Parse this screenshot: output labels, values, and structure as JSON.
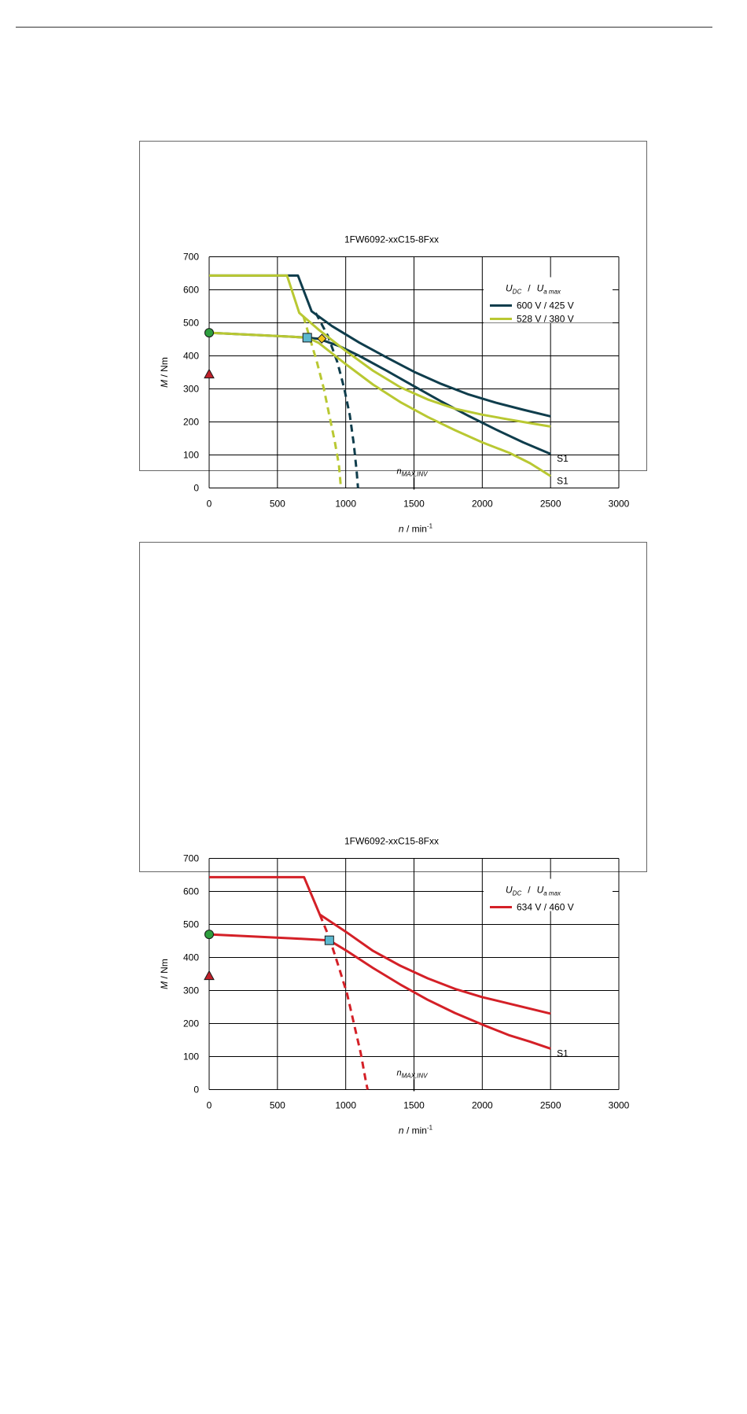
{
  "chart_data": [
    {
      "type": "line",
      "title": "1FW6092-xxC15-8Fxx",
      "xlabel_var": "n",
      "xlabel_unit": " / min",
      "xlabel_exp": "-1",
      "ylabel_var": "M",
      "ylabel_unit": " / Nm",
      "xlim": [
        0,
        3000
      ],
      "ylim": [
        0,
        700
      ],
      "xticks": [
        "0",
        "500",
        "1000",
        "1500",
        "2000",
        "2500",
        "3000"
      ],
      "yticks": [
        "0",
        "100",
        "200",
        "300",
        "400",
        "500",
        "600",
        "700"
      ],
      "grid": true,
      "legend_position": "top-right",
      "legend_title_u": "U",
      "legend_title_dc": "DC",
      "legend_title_sep": "/",
      "legend_title_ua": "U",
      "legend_title_amax": "a max",
      "series": [
        {
          "name": "600 V / 425 V",
          "color": "#0f3d4c",
          "peak": [
            [
              0,
              643
            ],
            [
              650,
              643
            ],
            [
              750,
              535
            ],
            [
              900,
              490
            ],
            [
              1100,
              440
            ],
            [
              1300,
              395
            ],
            [
              1500,
              352
            ],
            [
              1700,
              315
            ],
            [
              1900,
              283
            ],
            [
              2100,
              258
            ],
            [
              2300,
              237
            ],
            [
              2500,
              217
            ]
          ],
          "s1": [
            [
              0,
              470
            ],
            [
              600,
              458
            ],
            [
              720,
              455
            ],
            [
              800,
              452
            ],
            [
              950,
              430
            ],
            [
              1100,
              400
            ],
            [
              1300,
              355
            ],
            [
              1500,
              308
            ],
            [
              1700,
              262
            ],
            [
              1900,
              218
            ],
            [
              2100,
              177
            ],
            [
              2300,
              138
            ],
            [
              2500,
              103
            ]
          ],
          "dashed": [
            [
              780,
              530
            ],
            [
              870,
              460
            ],
            [
              940,
              380
            ],
            [
              990,
              300
            ],
            [
              1030,
              220
            ],
            [
              1060,
              130
            ],
            [
              1080,
              50
            ],
            [
              1090,
              0
            ]
          ],
          "s1_label": "S1"
        },
        {
          "name": "528 V / 380 V",
          "color": "#b9c832",
          "peak": [
            [
              0,
              643
            ],
            [
              570,
              643
            ],
            [
              660,
              530
            ],
            [
              800,
              480
            ],
            [
              1000,
              415
            ],
            [
              1200,
              355
            ],
            [
              1400,
              305
            ],
            [
              1600,
              268
            ],
            [
              1800,
              240
            ],
            [
              2000,
              222
            ],
            [
              2200,
              207
            ],
            [
              2500,
              186
            ]
          ],
          "s1": [
            [
              0,
              470
            ],
            [
              600,
              458
            ],
            [
              720,
              455
            ],
            [
              800,
              440
            ],
            [
              1000,
              375
            ],
            [
              1200,
              313
            ],
            [
              1400,
              260
            ],
            [
              1600,
              215
            ],
            [
              1800,
              175
            ],
            [
              2000,
              138
            ],
            [
              2200,
              106
            ],
            [
              2350,
              75
            ],
            [
              2500,
              36
            ]
          ],
          "dashed": [
            [
              690,
              520
            ],
            [
              740,
              450
            ],
            [
              790,
              380
            ],
            [
              840,
              300
            ],
            [
              880,
              220
            ],
            [
              920,
              140
            ],
            [
              950,
              70
            ],
            [
              965,
              0
            ]
          ],
          "s1_label": "S1"
        }
      ],
      "markers": [
        {
          "type": "circle",
          "x": 0,
          "y": 470,
          "color": "#2e9e3e"
        },
        {
          "type": "triangle",
          "x": 0,
          "y": 345,
          "color": "#c0202a"
        },
        {
          "type": "square",
          "x": 718,
          "y": 455,
          "color": "#5bb8cf"
        },
        {
          "type": "diamond",
          "x": 825,
          "y": 452,
          "color": "#f2c218"
        }
      ],
      "annotation": {
        "var": "n",
        "sub": "MAX,INV",
        "x": 1500
      }
    },
    {
      "type": "line",
      "title": "1FW6092-xxC15-8Fxx",
      "xlabel_var": "n",
      "xlabel_unit": " / min",
      "xlabel_exp": "-1",
      "ylabel_var": "M",
      "ylabel_unit": " / Nm",
      "xlim": [
        0,
        3000
      ],
      "ylim": [
        0,
        700
      ],
      "xticks": [
        "0",
        "500",
        "1000",
        "1500",
        "2000",
        "2500",
        "3000"
      ],
      "yticks": [
        "0",
        "100",
        "200",
        "300",
        "400",
        "500",
        "600",
        "700"
      ],
      "grid": true,
      "legend_position": "top-right",
      "legend_title_u": "U",
      "legend_title_dc": "DC",
      "legend_title_sep": "/",
      "legend_title_ua": "U",
      "legend_title_amax": "a max",
      "series": [
        {
          "name": "634 V / 460 V",
          "color": "#d42027",
          "peak": [
            [
              0,
              643
            ],
            [
              695,
              643
            ],
            [
              810,
              530
            ],
            [
              1000,
              478
            ],
            [
              1200,
              420
            ],
            [
              1400,
              375
            ],
            [
              1600,
              337
            ],
            [
              1800,
              305
            ],
            [
              2000,
              280
            ],
            [
              2200,
              260
            ],
            [
              2500,
              230
            ]
          ],
          "s1": [
            [
              0,
              470
            ],
            [
              600,
              458
            ],
            [
              880,
              452
            ],
            [
              1000,
              422
            ],
            [
              1200,
              368
            ],
            [
              1400,
              318
            ],
            [
              1600,
              272
            ],
            [
              1800,
              232
            ],
            [
              2000,
              197
            ],
            [
              2200,
              164
            ],
            [
              2350,
              145
            ],
            [
              2500,
              124
            ]
          ],
          "dashed": [
            [
              810,
              530
            ],
            [
              880,
              460
            ],
            [
              950,
              370
            ],
            [
              1010,
              290
            ],
            [
              1060,
              200
            ],
            [
              1110,
              110
            ],
            [
              1150,
              20
            ],
            [
              1160,
              0
            ]
          ],
          "s1_label": "S1"
        }
      ],
      "markers": [
        {
          "type": "circle",
          "x": 0,
          "y": 470,
          "color": "#2e9e3e"
        },
        {
          "type": "triangle",
          "x": 0,
          "y": 345,
          "color": "#c0202a"
        },
        {
          "type": "square",
          "x": 880,
          "y": 452,
          "color": "#5bb8cf"
        }
      ],
      "annotation": {
        "var": "n",
        "sub": "MAX,INV",
        "x": 1500
      }
    }
  ]
}
